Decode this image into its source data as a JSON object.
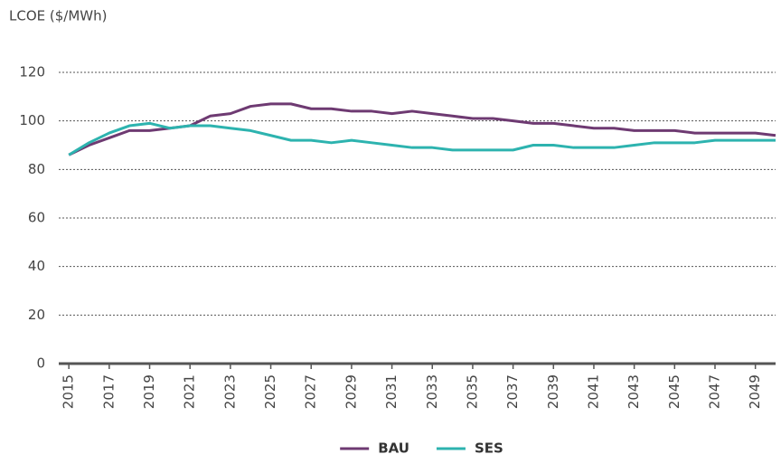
{
  "chart_data": {
    "type": "line",
    "y_axis_label": "LCOE ($/MWh)",
    "x": [
      2015,
      2016,
      2017,
      2018,
      2019,
      2020,
      2021,
      2022,
      2023,
      2024,
      2025,
      2026,
      2027,
      2028,
      2029,
      2030,
      2031,
      2032,
      2033,
      2034,
      2035,
      2036,
      2037,
      2038,
      2039,
      2040,
      2041,
      2042,
      2043,
      2044,
      2045,
      2046,
      2047,
      2048,
      2049,
      2050
    ],
    "series": [
      {
        "name": "BAU",
        "color": "#6e3a72",
        "values": [
          86,
          90,
          93,
          96,
          96,
          97,
          98,
          102,
          103,
          106,
          107,
          107,
          105,
          105,
          104,
          104,
          103,
          104,
          103,
          102,
          101,
          101,
          100,
          99,
          99,
          98,
          97,
          97,
          96,
          96,
          96,
          95,
          95,
          95,
          95,
          94
        ]
      },
      {
        "name": "SES",
        "color": "#2db3af",
        "values": [
          86,
          91,
          95,
          98,
          99,
          97,
          98,
          98,
          97,
          96,
          94,
          92,
          92,
          91,
          92,
          91,
          90,
          89,
          89,
          88,
          88,
          88,
          88,
          90,
          90,
          89,
          89,
          89,
          90,
          91,
          91,
          91,
          92,
          92,
          92,
          92
        ]
      }
    ],
    "xlim": [
      2014.5,
      2050
    ],
    "xticks": [
      2015,
      2017,
      2019,
      2021,
      2023,
      2025,
      2027,
      2029,
      2031,
      2033,
      2035,
      2037,
      2039,
      2041,
      2043,
      2045,
      2047,
      2049
    ],
    "ylim": [
      0,
      120
    ],
    "yticks": [
      0,
      20,
      40,
      60,
      80,
      100,
      120
    ],
    "grid": true,
    "legend": "bottom"
  }
}
